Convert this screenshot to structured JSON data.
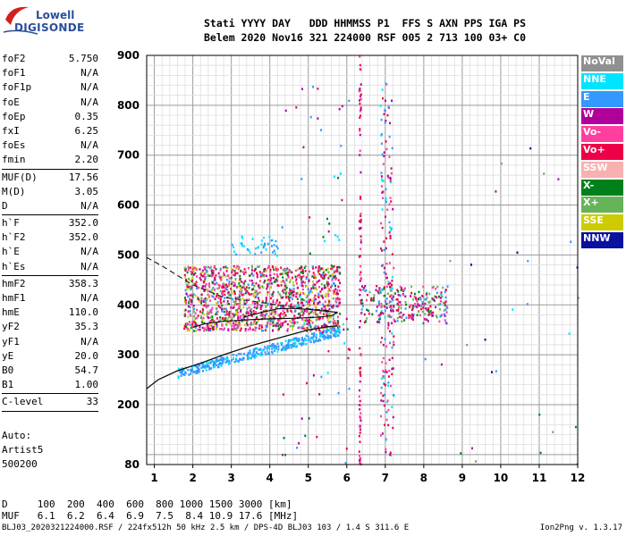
{
  "logo": {
    "line1": "Lowell",
    "line2": "DIGISONDE"
  },
  "header": {
    "columns": [
      "Stati",
      "YYYY",
      "DAY",
      "DDD",
      "HHMMSS",
      "P1",
      "FFS",
      "S",
      "AXN",
      "PPS",
      "IGA",
      "PS"
    ],
    "values": [
      "Belem",
      "2020",
      "Nov16",
      "321",
      "224000",
      "RSF",
      "005",
      "2",
      "713",
      "100",
      "03+",
      "C0"
    ]
  },
  "params": [
    {
      "label": "foF2",
      "value": "5.750"
    },
    {
      "label": "foF1",
      "value": "N/A"
    },
    {
      "label": "foF1p",
      "value": "N/A"
    },
    {
      "label": "foE",
      "value": "N/A"
    },
    {
      "label": "foEp",
      "value": "0.35"
    },
    {
      "label": "fxI",
      "value": "6.25"
    },
    {
      "label": "foEs",
      "value": "N/A"
    },
    {
      "label": "fmin",
      "value": "2.20"
    },
    {
      "sep": true
    },
    {
      "label": "MUF(D)",
      "value": "17.56"
    },
    {
      "label": "M(D)",
      "value": "3.05"
    },
    {
      "label": "D",
      "value": "N/A"
    },
    {
      "sep": true
    },
    {
      "label": "h`F",
      "value": "352.0"
    },
    {
      "label": "h`F2",
      "value": "352.0"
    },
    {
      "label": "h`E",
      "value": "N/A"
    },
    {
      "label": "h`Es",
      "value": "N/A"
    },
    {
      "sep": true
    },
    {
      "label": "hmF2",
      "value": "358.3"
    },
    {
      "label": "hmF1",
      "value": "N/A"
    },
    {
      "label": "hmE",
      "value": "110.0"
    },
    {
      "label": "yF2",
      "value": "35.3"
    },
    {
      "label": "yF1",
      "value": "N/A"
    },
    {
      "label": "yE",
      "value": "20.0"
    },
    {
      "label": "B0",
      "value": "54.7"
    },
    {
      "label": "B1",
      "value": "1.00"
    },
    {
      "sep": true
    },
    {
      "label": "C-level",
      "value": "33"
    },
    {
      "sep": true
    }
  ],
  "auto": {
    "line1": "Auto:",
    "line2": "Artist5",
    "line3": "500200"
  },
  "legend": [
    {
      "label": "NoVal",
      "color": "#909090"
    },
    {
      "label": "NNE",
      "color": "#00e5ff"
    },
    {
      "label": "E",
      "color": "#3399ff"
    },
    {
      "label": "W",
      "color": "#b0009b"
    },
    {
      "label": "Vo-",
      "color": "#ff3fa0"
    },
    {
      "label": "Vo+",
      "color": "#ee0048"
    },
    {
      "label": "SSW",
      "color": "#f8b0b0"
    },
    {
      "label": "X-",
      "color": "#00801a"
    },
    {
      "label": "X+",
      "color": "#66b35a"
    },
    {
      "label": "SSE",
      "color": "#cccc00"
    },
    {
      "label": "NNW",
      "color": "#0a10a0"
    }
  ],
  "dmuf": {
    "d_label": "D",
    "d_values": [
      "100",
      "200",
      "400",
      "600",
      "800",
      "1000",
      "1500",
      "3000"
    ],
    "d_unit": "[km]",
    "muf_label": "MUF",
    "muf_values": [
      "6.1",
      "6.2",
      "6.4",
      "6.9",
      "7.5",
      "8.4",
      "10.9",
      "17.6"
    ],
    "muf_unit": "[MHz]"
  },
  "footer": {
    "left": "BLJ03_2020321224000.RSF / 224fx512h 50 kHz 2.5 km / DPS-4D BLJ03 103 / 1.4 S 311.6 E",
    "right": "Ion2Png v. 1.3.17"
  },
  "chart_data": {
    "type": "scatter",
    "xlim": [
      0.8,
      12.0
    ],
    "ylim": [
      80,
      900
    ],
    "xticks": [
      1,
      2,
      3,
      4,
      5,
      6,
      7,
      8,
      9,
      10,
      11,
      12
    ],
    "yticks": [
      80,
      200,
      300,
      400,
      500,
      600,
      700,
      800,
      900
    ],
    "grid": true,
    "legend_position": "right",
    "trace_dashed": [
      [
        0.8,
        495
      ],
      [
        1.2,
        478
      ],
      [
        2.0,
        440
      ],
      [
        2.8,
        415
      ],
      [
        3.5,
        408
      ],
      [
        4.2,
        400
      ],
      [
        5.0,
        392
      ],
      [
        5.6,
        388
      ]
    ],
    "trace_profile": [
      [
        0.8,
        232
      ],
      [
        1.1,
        250
      ],
      [
        1.6,
        268
      ],
      [
        2.2,
        283
      ],
      [
        2.8,
        300
      ],
      [
        3.5,
        318
      ],
      [
        4.2,
        333
      ],
      [
        5.0,
        350
      ],
      [
        5.5,
        356
      ],
      [
        5.75,
        358
      ]
    ],
    "trace_h_lower": [
      [
        2.0,
        355
      ],
      [
        2.3,
        362
      ],
      [
        2.8,
        367
      ],
      [
        3.4,
        370
      ],
      [
        4.0,
        372
      ],
      [
        4.6,
        373
      ],
      [
        5.2,
        375
      ],
      [
        5.6,
        378
      ],
      [
        5.75,
        385
      ]
    ],
    "trace_h_upper": [
      [
        3.3,
        375
      ],
      [
        3.8,
        385
      ],
      [
        4.2,
        392
      ],
      [
        4.6,
        393
      ],
      [
        5.0,
        391
      ],
      [
        5.5,
        387
      ],
      [
        5.75,
        385
      ]
    ],
    "clusters": [
      {
        "x": [
          1.75,
          5.8
        ],
        "y": [
          350,
          480
        ],
        "n": 1400,
        "colors": [
          "#ee0048",
          "#ff3fa0",
          "#b0009b",
          "#ee0048",
          "#ff3fa0",
          "#00801a",
          "#66b35a",
          "#3399ff",
          "#cccc00"
        ]
      },
      {
        "x": [
          6.35,
          8.6
        ],
        "y": [
          365,
          440
        ],
        "n": 260,
        "colors": [
          "#ee0048",
          "#ff3fa0",
          "#00801a",
          "#66b35a",
          "#b0009b",
          "#3399ff"
        ]
      },
      {
        "x": [
          1.6,
          5.8
        ],
        "y": [
          250,
          360
        ],
        "n": 380,
        "band": true,
        "colors": [
          "#3399ff",
          "#3399ff",
          "#00e5ff",
          "#3399ff"
        ]
      },
      {
        "x": [
          3.0,
          4.2
        ],
        "y": [
          500,
          540
        ],
        "n": 40,
        "colors": [
          "#3399ff",
          "#00e5ff"
        ]
      },
      {
        "x": [
          6.3,
          6.35
        ],
        "y": [
          80,
          900
        ],
        "n": 90,
        "colors": [
          "#b0009b",
          "#ee0048",
          "#ff3fa0"
        ]
      },
      {
        "x": [
          6.85,
          7.2
        ],
        "y": [
          100,
          850
        ],
        "n": 180,
        "colors": [
          "#3399ff",
          "#00e5ff",
          "#ee0048",
          "#b0009b",
          "#ff3fa0"
        ]
      },
      {
        "x": [
          4.3,
          6.1
        ],
        "y": [
          80,
          860
        ],
        "n": 70,
        "colors": [
          "#b0009b",
          "#3399ff",
          "#00801a",
          "#ee0048",
          "#00e5ff"
        ]
      },
      {
        "x": [
          8.0,
          12.0
        ],
        "y": [
          80,
          720
        ],
        "n": 30,
        "colors": [
          "#3399ff",
          "#00e5ff",
          "#00801a",
          "#0a10a0",
          "#b0009b",
          "#909090",
          "#66b35a"
        ]
      }
    ]
  }
}
